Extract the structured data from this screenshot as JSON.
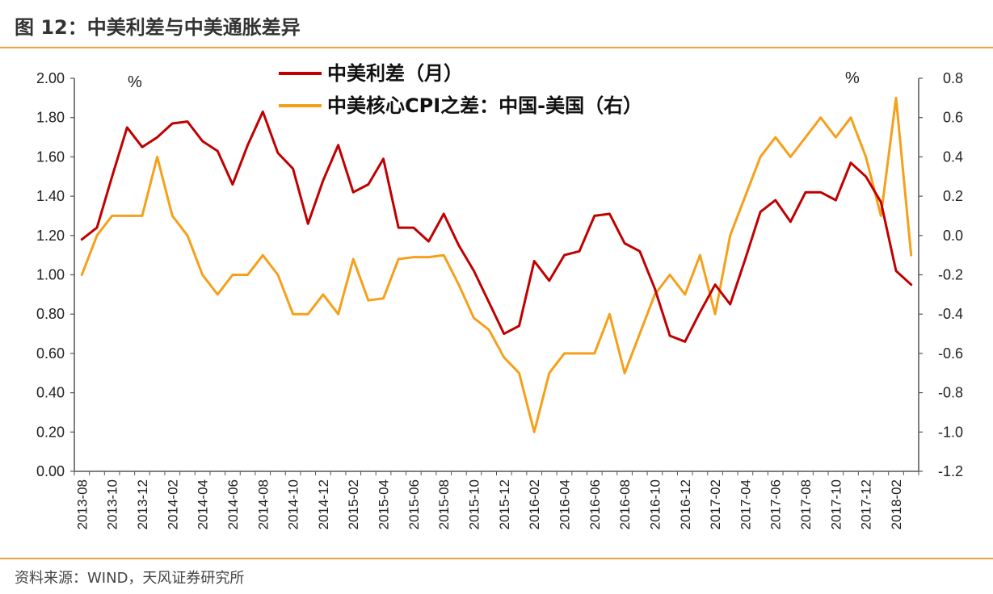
{
  "figure": {
    "title": "图 12：中美利差与中美通胀差异",
    "source": "资料来源：WIND，天风证券研究所"
  },
  "chart_data": {
    "type": "line",
    "y_left": {
      "ylim": [
        0,
        2.0
      ],
      "ticks": [
        "0.00",
        "0.20",
        "0.40",
        "0.60",
        "0.80",
        "1.00",
        "1.20",
        "1.40",
        "1.60",
        "1.80",
        "2.00"
      ],
      "unit": "%"
    },
    "y_right": {
      "ylim": [
        -1.2,
        0.8
      ],
      "ticks": [
        "-1.2",
        "-1.0",
        "-0.8",
        "-0.6",
        "-0.4",
        "-0.2",
        "0.0",
        "0.2",
        "0.4",
        "0.6",
        "0.8"
      ],
      "unit": "%"
    },
    "x_tick_labels": [
      "2013-08",
      "2013-10",
      "2013-12",
      "2014-02",
      "2014-04",
      "2014-06",
      "2014-08",
      "2014-10",
      "2014-12",
      "2015-02",
      "2015-04",
      "2015-06",
      "2015-08",
      "2015-10",
      "2015-12",
      "2016-02",
      "2016-04",
      "2016-06",
      "2016-08",
      "2016-10",
      "2016-12",
      "2017-02",
      "2017-04",
      "2017-06",
      "2017-08",
      "2017-10",
      "2017-12",
      "2018-02"
    ],
    "months": 56,
    "legend_position": "top-center",
    "series": [
      {
        "name": "中美利差（月）",
        "axis": "left",
        "color": "#c00000",
        "values": [
          1.18,
          1.24,
          1.5,
          1.75,
          1.65,
          1.7,
          1.77,
          1.78,
          1.68,
          1.63,
          1.46,
          1.66,
          1.83,
          1.62,
          1.54,
          1.26,
          1.48,
          1.66,
          1.42,
          1.46,
          1.59,
          1.24,
          1.24,
          1.17,
          1.31,
          1.15,
          1.02,
          0.86,
          0.7,
          0.74,
          1.07,
          0.97,
          1.1,
          1.12,
          1.3,
          1.31,
          1.16,
          1.12,
          0.93,
          0.69,
          0.66,
          0.81,
          0.95,
          0.85,
          1.08,
          1.32,
          1.38,
          1.27,
          1.42,
          1.42,
          1.38,
          1.57,
          1.5,
          1.37,
          1.02,
          0.95
        ]
      },
      {
        "name": "中美核心CPI之差：中国-美国（右）",
        "axis": "right",
        "color": "#f5a01a",
        "values": [
          -0.2,
          0.0,
          0.1,
          0.1,
          0.1,
          0.4,
          0.1,
          0.0,
          -0.2,
          -0.3,
          -0.2,
          -0.2,
          -0.1,
          -0.2,
          -0.4,
          -0.4,
          -0.3,
          -0.4,
          -0.12,
          -0.33,
          -0.32,
          -0.12,
          -0.11,
          -0.11,
          -0.1,
          -0.25,
          -0.42,
          -0.48,
          -0.62,
          -0.7,
          -1.0,
          -0.7,
          -0.6,
          -0.6,
          -0.6,
          -0.4,
          -0.7,
          -0.5,
          -0.3,
          -0.2,
          -0.3,
          -0.1,
          -0.4,
          0.0,
          0.2,
          0.4,
          0.5,
          0.4,
          0.5,
          0.6,
          0.5,
          0.6,
          0.4,
          0.1,
          0.7,
          -0.1
        ]
      }
    ]
  }
}
